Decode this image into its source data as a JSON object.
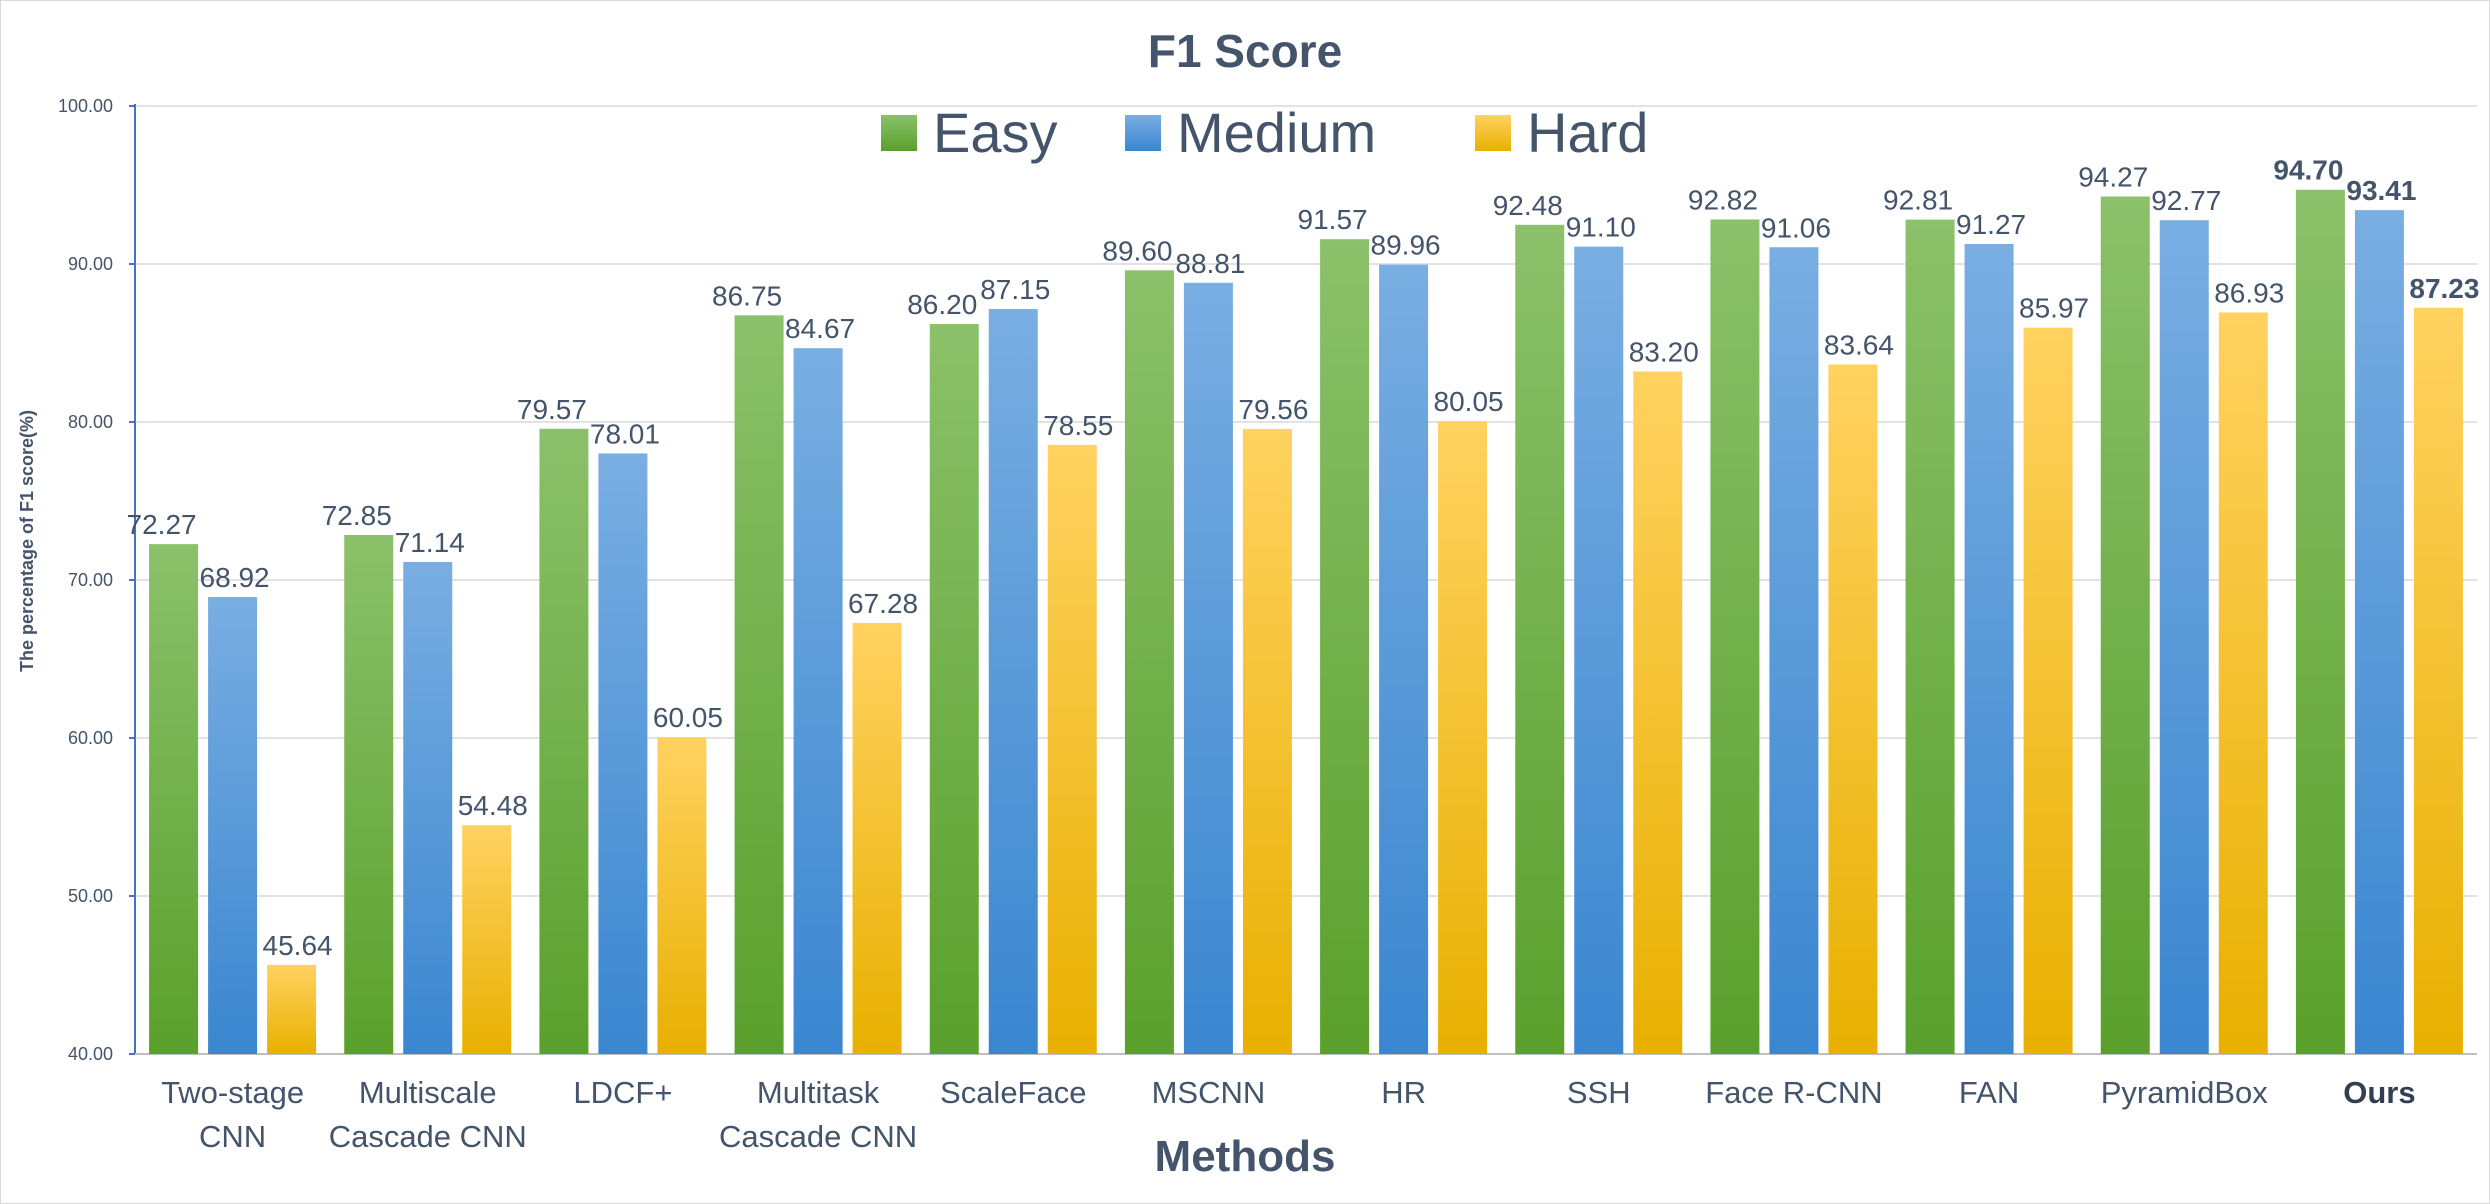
{
  "chart_data": {
    "type": "bar",
    "title": "F1 Score",
    "xlabel": "Methods",
    "ylabel": "The percentage of F1 score(%)",
    "ylim": [
      40,
      100
    ],
    "yticks": [
      "40.00",
      "50.00",
      "60.00",
      "70.00",
      "80.00",
      "90.00",
      "100.00"
    ],
    "grid": true,
    "legend_position": "top-center",
    "categories": [
      [
        "Two-stage",
        "CNN"
      ],
      [
        "Multiscale",
        "Cascade CNN"
      ],
      [
        "LDCF+"
      ],
      [
        "Multitask",
        "Cascade CNN"
      ],
      [
        "ScaleFace"
      ],
      [
        "MSCNN"
      ],
      [
        "HR"
      ],
      [
        "SSH"
      ],
      [
        "Face R-CNN"
      ],
      [
        "FAN"
      ],
      [
        "PyramidBox"
      ],
      [
        "Ours"
      ]
    ],
    "bold_category_index": 11,
    "series": [
      {
        "name": "Easy",
        "color_light": "#8bc16a",
        "color_dark": "#5aa02c",
        "values": [
          72.27,
          72.85,
          79.57,
          86.75,
          86.2,
          89.6,
          91.57,
          92.48,
          92.82,
          92.81,
          94.27,
          94.7
        ],
        "labels": [
          "72.27",
          "72.85",
          "79.57",
          "86.75",
          "86.20",
          "89.60",
          "91.57",
          "92.48",
          "92.82",
          "92.81",
          "94.27",
          "94.70"
        ]
      },
      {
        "name": "Medium",
        "color_light": "#79aee2",
        "color_dark": "#3a86d0",
        "values": [
          68.92,
          71.14,
          78.01,
          84.67,
          87.15,
          88.81,
          89.96,
          91.1,
          91.06,
          91.27,
          92.77,
          93.41
        ],
        "labels": [
          "68.92",
          "71.14",
          "78.01",
          "84.67",
          "87.15",
          "88.81",
          "89.96",
          "91.10",
          "91.06",
          "91.27",
          "92.77",
          "93.41"
        ]
      },
      {
        "name": "Hard",
        "color_light": "#ffd260",
        "color_dark": "#e8b000",
        "values": [
          45.64,
          54.48,
          60.05,
          67.28,
          78.55,
          79.56,
          80.05,
          83.2,
          83.64,
          85.97,
          86.93,
          87.23
        ],
        "labels": [
          "45.64",
          "54.48",
          "60.05",
          "67.28",
          "78.55",
          "79.56",
          "80.05",
          "83.20",
          "83.64",
          "85.97",
          "86.93",
          "87.23"
        ]
      }
    ],
    "text_color": "#44546a",
    "axis_color": "#4472c4"
  }
}
